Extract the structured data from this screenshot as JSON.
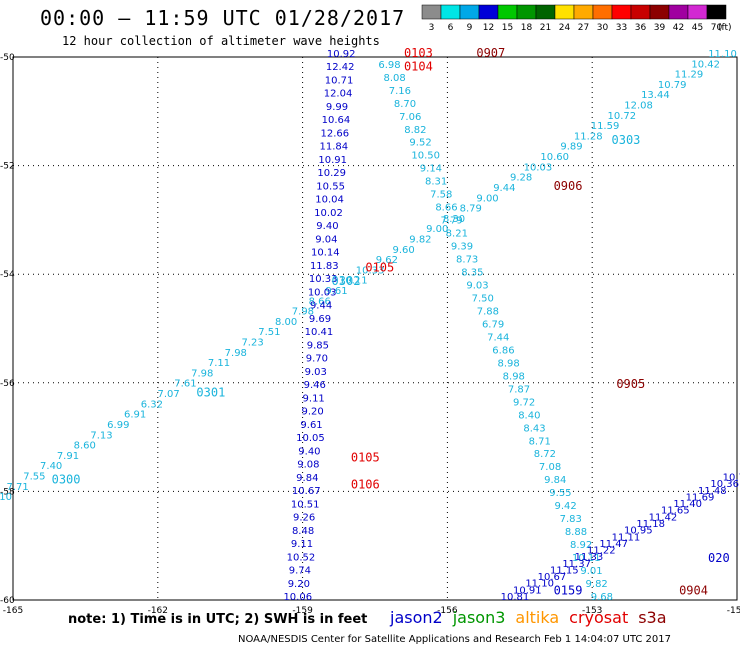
{
  "header": {
    "title": "00:00 – 11:59 UTC 01/28/2017",
    "subtitle": "12 hour collection of altimeter wave heights"
  },
  "colorbar": {
    "unit": "(ft)",
    "bins": [
      {
        "label": "3",
        "color": "#8c8c8c"
      },
      {
        "label": "6",
        "color": "#00e5e5"
      },
      {
        "label": "9",
        "color": "#00a8e8"
      },
      {
        "label": "12",
        "color": "#0000d8"
      },
      {
        "label": "15",
        "color": "#00c800"
      },
      {
        "label": "18",
        "color": "#009600"
      },
      {
        "label": "21",
        "color": "#006400"
      },
      {
        "label": "24",
        "color": "#ffe100"
      },
      {
        "label": "27",
        "color": "#ffaa00"
      },
      {
        "label": "30",
        "color": "#ff6e00"
      },
      {
        "label": "33",
        "color": "#ff0000"
      },
      {
        "label": "36",
        "color": "#c80000"
      },
      {
        "label": "39",
        "color": "#8c0000"
      },
      {
        "label": "42",
        "color": "#a000a0"
      },
      {
        "label": "45",
        "color": "#d228d2"
      },
      {
        "label": "70",
        "color": "#000000"
      }
    ]
  },
  "footer": {
    "note": "note: 1) Time is in UTC; 2) SWH is in feet",
    "satellites": [
      {
        "name": "jason2",
        "color": "#0000c8"
      },
      {
        "name": "jason3",
        "color": "#009600"
      },
      {
        "name": "altika",
        "color": "#ff9600"
      },
      {
        "name": "cryosat",
        "color": "#e10000"
      },
      {
        "name": "s3a",
        "color": "#8c0000"
      }
    ],
    "credit": "NOAA/NESDIS Center for Satellite Applications and Research   Feb  1 14:04:07 UTC 2017"
  },
  "chart_data": {
    "type": "scatter",
    "xlim": [
      -165,
      -150
    ],
    "ylim": [
      -60,
      -50
    ],
    "x_ticks": [
      "-165",
      "-162",
      "-159",
      "-156",
      "-153",
      "-150"
    ],
    "y_ticks": [
      "-50",
      "-52",
      "-54",
      "-56",
      "-58",
      "-60"
    ],
    "x_tick_values": [
      -165,
      -162,
      -159,
      -156,
      -153,
      -150
    ],
    "y_tick_values": [
      -50,
      -52,
      -54,
      -56,
      -58,
      -60
    ],
    "grid": true,
    "series": [
      {
        "name": "jason2",
        "tracks": [
          {
            "x0": -165.6,
            "y0": -58.35,
            "x1": -150.3,
            "y1": -50.0,
            "color": "#1ab4dc",
            "values": [
              "7.11",
              "7.10",
              "7.71",
              "7.55",
              "7.40",
              "7.91",
              "8.60",
              "7.13",
              "6.99",
              "6.91",
              "6.32",
              "7.07",
              "7.61",
              "7.98",
              "7.11",
              "7.98",
              "7.23",
              "7.51",
              "8.00",
              "7.98",
              "8.66",
              "9.61",
              "10.11",
              "10.33",
              "9.62",
              "9.60",
              "9.82",
              "9.00",
              "8.30",
              "8.79",
              "9.00",
              "9.44",
              "9.28",
              "10.03",
              "10.60",
              "9.89",
              "11.28",
              "11.59",
              "10.72",
              "12.08",
              "13.44",
              "10.79",
              "11.29",
              "10.42",
              "11.10"
            ],
            "labels": [
              {
                "text": "0300",
                "x": -164.2,
                "y": -57.85
              },
              {
                "text": "0301",
                "x": -161.2,
                "y": -56.25
              },
              {
                "text": "0302",
                "x": -158.4,
                "y": -54.2
              },
              {
                "text": "0303",
                "x": -152.6,
                "y": -51.6
              }
            ]
          },
          {
            "x0": -157.2,
            "y0": -50.2,
            "x1": -152.8,
            "y1": -60.0,
            "color": "#1ab4dc",
            "values": [
              "6.98",
              "8.08",
              "7.16",
              "8.70",
              "7.06",
              "8.82",
              "9.52",
              "10.50",
              "9.14",
              "8.31",
              "7.58",
              "8.66",
              "7.79",
              "8.21",
              "9.39",
              "8.73",
              "8.35",
              "9.03",
              "7.50",
              "7.88",
              "6.79",
              "7.44",
              "6.86",
              "8.98",
              "8.98",
              "7.87",
              "9.72",
              "8.40",
              "8.43",
              "8.71",
              "8.72",
              "7.08",
              "9.84",
              "9.55",
              "9.42",
              "7.83",
              "8.88",
              "8.92",
              "10.11",
              "9.01",
              "9.82",
              "9.68"
            ],
            "labels": []
          },
          {
            "x0": -158.2,
            "y0": -50.0,
            "x1": -159.1,
            "y1": -60.0,
            "color": "#0000c8",
            "values": [
              "10.92",
              "12.42",
              "10.71",
              "12.04",
              "9.99",
              "10.64",
              "12.66",
              "11.84",
              "10.91",
              "10.29",
              "10.55",
              "10.04",
              "10.02",
              "9.40",
              "9.04",
              "10.14",
              "11.83",
              "10.33",
              "10.03",
              "9.44",
              "9.69",
              "10.41",
              "9.85",
              "9.70",
              "9.03",
              "9.46",
              "9.11",
              "9.20",
              "9.61",
              "10.05",
              "9.40",
              "9.08",
              "9.84",
              "10.67",
              "10.51",
              "9.26",
              "8.48",
              "9.11",
              "10.52",
              "9.74",
              "9.20",
              "10.06"
            ],
            "labels": []
          }
        ]
      },
      {
        "name": "jason3",
        "tracks": [
          {
            "x0": -154.6,
            "y0": -60.0,
            "x1": -150.0,
            "y1": -57.8,
            "color": "#0000c8",
            "values": [
              "10.81",
              "10.91",
              "11.10",
              "10.67",
              "11.15",
              "11.37",
              "11.33",
              "11.22",
              "11.47",
              "11.11",
              "10.95",
              "11.18",
              "11.42",
              "11.65",
              "11.40",
              "11.69",
              "11.48",
              "10.36",
              "10.71"
            ],
            "labels": [
              {
                "text": "0159",
                "x": -153.8,
                "y": -59.9
              },
              {
                "text": "020",
                "x": -150.6,
                "y": -59.3
              }
            ]
          }
        ]
      },
      {
        "name": "cryosat",
        "tracks": [
          {
            "x0": 0,
            "y0": 0,
            "x1": 0,
            "y1": 0,
            "color": "#e10000",
            "values": [],
            "labels": [
              {
                "text": "0103",
                "x": -156.9,
                "y": -50.0
              },
              {
                "text": "0104",
                "x": -156.9,
                "y": -50.25
              },
              {
                "text": "0105",
                "x": -157.7,
                "y": -53.95
              },
              {
                "text": "0105",
                "x": -158.0,
                "y": -57.45
              },
              {
                "text": "0106",
                "x": -158.0,
                "y": -57.95
              }
            ]
          }
        ]
      },
      {
        "name": "s3a",
        "tracks": [
          {
            "x0": 0,
            "y0": 0,
            "x1": 0,
            "y1": 0,
            "color": "#8c0000",
            "values": [],
            "labels": [
              {
                "text": "0907",
                "x": -155.4,
                "y": -50.0
              },
              {
                "text": "0906",
                "x": -153.8,
                "y": -52.45
              },
              {
                "text": "0905",
                "x": -152.5,
                "y": -56.1
              },
              {
                "text": "0904",
                "x": -151.2,
                "y": -59.9
              }
            ]
          }
        ]
      }
    ]
  }
}
